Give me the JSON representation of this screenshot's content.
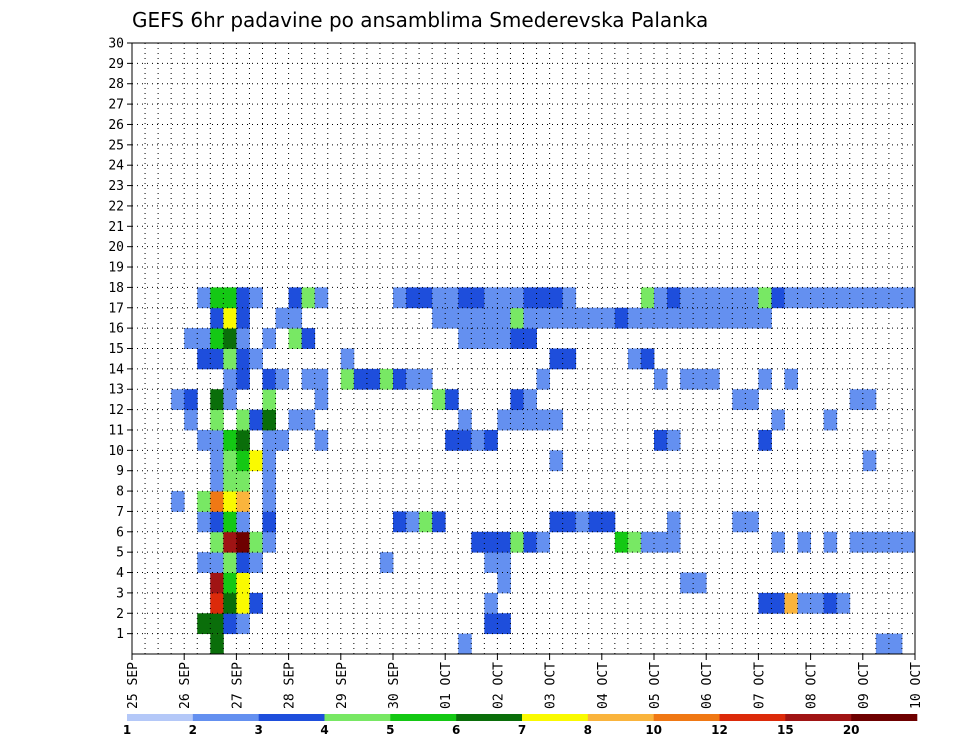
{
  "chart_data": {
    "type": "heatmap",
    "title": "GEFS 6hr padavine po ansamblima Smederevska Palanka",
    "x_tick_labels": [
      "25 SEP",
      "26 SEP",
      "27 SEP",
      "28 SEP",
      "29 SEP",
      "30 SEP",
      "01 OCT",
      "02 OCT",
      "03 OCT",
      "04 OCT",
      "05 OCT",
      "06 OCT",
      "07 OCT",
      "08 OCT",
      "09 OCT",
      "10 OCT"
    ],
    "x_range_steps": [
      0,
      60
    ],
    "steps_per_day": 4,
    "y_tick_labels": [
      "1",
      "2",
      "3",
      "4",
      "5",
      "6",
      "7",
      "8",
      "9",
      "10",
      "11",
      "12",
      "13",
      "14",
      "15",
      "16",
      "17",
      "18",
      "19",
      "20",
      "21",
      "22",
      "23",
      "24",
      "25",
      "26",
      "27",
      "28",
      "29",
      "30"
    ],
    "y_range": [
      0,
      30
    ],
    "grid": true,
    "legend": {
      "placement": "bottom",
      "labels": [
        "1",
        "2",
        "3",
        "4",
        "5",
        "6",
        "7",
        "8",
        "10",
        "12",
        "15",
        "20"
      ],
      "colors": [
        "#b4c8f8",
        "#6490f0",
        "#1e4edc",
        "#78e864",
        "#14c814",
        "#0a6e0a",
        "#fafa00",
        "#fab43c",
        "#f07814",
        "#dc2a0a",
        "#a01414",
        "#6e0000"
      ]
    },
    "cells": [
      [
        6,
        0,
        5
      ],
      [
        6,
        1,
        8
      ],
      [
        6,
        2,
        1
      ],
      [
        6,
        3,
        1
      ],
      [
        7,
        1,
        1
      ],
      [
        25,
        0,
        1
      ],
      [
        57,
        0,
        1
      ],
      [
        58,
        0,
        1
      ],
      [
        5,
        1,
        5
      ],
      [
        6,
        1,
        5
      ],
      [
        7,
        1,
        2
      ],
      [
        8,
        1,
        1
      ],
      [
        27,
        1,
        2
      ],
      [
        28,
        1,
        2
      ],
      [
        6,
        2,
        9
      ],
      [
        7,
        2,
        5
      ],
      [
        8,
        2,
        6
      ],
      [
        9,
        2,
        2
      ],
      [
        27,
        2,
        1
      ],
      [
        48,
        2,
        2
      ],
      [
        49,
        2,
        2
      ],
      [
        50,
        2,
        7
      ],
      [
        51,
        2,
        1
      ],
      [
        52,
        2,
        1
      ],
      [
        53,
        2,
        2
      ],
      [
        54,
        2,
        1
      ],
      [
        6,
        3,
        10
      ],
      [
        7,
        3,
        4
      ],
      [
        8,
        3,
        6
      ],
      [
        28,
        3,
        1
      ],
      [
        42,
        3,
        1
      ],
      [
        43,
        3,
        1
      ],
      [
        5,
        4,
        1
      ],
      [
        6,
        4,
        1
      ],
      [
        7,
        4,
        3
      ],
      [
        8,
        4,
        2
      ],
      [
        9,
        4,
        1
      ],
      [
        19,
        4,
        1
      ],
      [
        27,
        4,
        1
      ],
      [
        28,
        4,
        1
      ],
      [
        6,
        5,
        3
      ],
      [
        7,
        5,
        10
      ],
      [
        8,
        5,
        11
      ],
      [
        9,
        5,
        3
      ],
      [
        10,
        5,
        1
      ],
      [
        26,
        5,
        2
      ],
      [
        27,
        5,
        2
      ],
      [
        28,
        5,
        2
      ],
      [
        29,
        5,
        3
      ],
      [
        30,
        5,
        2
      ],
      [
        31,
        5,
        1
      ],
      [
        37,
        5,
        4
      ],
      [
        38,
        5,
        3
      ],
      [
        39,
        5,
        1
      ],
      [
        40,
        5,
        1
      ],
      [
        41,
        5,
        1
      ],
      [
        49,
        5,
        1
      ],
      [
        51,
        5,
        1
      ],
      [
        53,
        5,
        1
      ],
      [
        55,
        5,
        1
      ],
      [
        56,
        5,
        1
      ],
      [
        57,
        5,
        1
      ],
      [
        58,
        5,
        1
      ],
      [
        59,
        5,
        1
      ],
      [
        5,
        6,
        1
      ],
      [
        6,
        6,
        2
      ],
      [
        7,
        6,
        4
      ],
      [
        8,
        6,
        1
      ],
      [
        10,
        6,
        2
      ],
      [
        20,
        6,
        2
      ],
      [
        21,
        6,
        1
      ],
      [
        22,
        6,
        3
      ],
      [
        23,
        6,
        2
      ],
      [
        32,
        6,
        2
      ],
      [
        33,
        6,
        2
      ],
      [
        34,
        6,
        1
      ],
      [
        35,
        6,
        2
      ],
      [
        36,
        6,
        2
      ],
      [
        41,
        6,
        1
      ],
      [
        46,
        6,
        1
      ],
      [
        47,
        6,
        1
      ],
      [
        3,
        7,
        1
      ],
      [
        5,
        7,
        3
      ],
      [
        6,
        7,
        8
      ],
      [
        7,
        7,
        6
      ],
      [
        8,
        7,
        7
      ],
      [
        10,
        7,
        1
      ],
      [
        6,
        8,
        1
      ],
      [
        7,
        8,
        3
      ],
      [
        8,
        8,
        3
      ],
      [
        10,
        8,
        1
      ],
      [
        6,
        9,
        1
      ],
      [
        7,
        9,
        3
      ],
      [
        8,
        9,
        4
      ],
      [
        9,
        9,
        6
      ],
      [
        10,
        9,
        1
      ],
      [
        32,
        9,
        1
      ],
      [
        56,
        9,
        1
      ],
      [
        5,
        10,
        1
      ],
      [
        6,
        10,
        1
      ],
      [
        7,
        10,
        4
      ],
      [
        8,
        10,
        5
      ],
      [
        10,
        10,
        1
      ],
      [
        11,
        10,
        1
      ],
      [
        14,
        10,
        1
      ],
      [
        24,
        10,
        2
      ],
      [
        25,
        10,
        2
      ],
      [
        26,
        10,
        1
      ],
      [
        27,
        10,
        2
      ],
      [
        40,
        10,
        2
      ],
      [
        41,
        10,
        1
      ],
      [
        48,
        10,
        2
      ],
      [
        4,
        11,
        1
      ],
      [
        6,
        11,
        3
      ],
      [
        8,
        11,
        3
      ],
      [
        9,
        11,
        2
      ],
      [
        10,
        11,
        5
      ],
      [
        12,
        11,
        1
      ],
      [
        13,
        11,
        1
      ],
      [
        25,
        11,
        1
      ],
      [
        28,
        11,
        1
      ],
      [
        29,
        11,
        1
      ],
      [
        30,
        11,
        1
      ],
      [
        31,
        11,
        1
      ],
      [
        32,
        11,
        1
      ],
      [
        49,
        11,
        1
      ],
      [
        53,
        11,
        1
      ],
      [
        3,
        12,
        1
      ],
      [
        4,
        12,
        2
      ],
      [
        6,
        12,
        5
      ],
      [
        7,
        12,
        1
      ],
      [
        10,
        12,
        3
      ],
      [
        14,
        12,
        1
      ],
      [
        23,
        12,
        3
      ],
      [
        24,
        12,
        2
      ],
      [
        29,
        12,
        2
      ],
      [
        30,
        12,
        1
      ],
      [
        46,
        12,
        1
      ],
      [
        47,
        12,
        1
      ],
      [
        55,
        12,
        1
      ],
      [
        56,
        12,
        1
      ],
      [
        7,
        13,
        1
      ],
      [
        8,
        13,
        2
      ],
      [
        10,
        13,
        2
      ],
      [
        11,
        13,
        1
      ],
      [
        13,
        13,
        1
      ],
      [
        14,
        13,
        1
      ],
      [
        16,
        13,
        3
      ],
      [
        17,
        13,
        2
      ],
      [
        18,
        13,
        2
      ],
      [
        19,
        13,
        3
      ],
      [
        20,
        13,
        2
      ],
      [
        21,
        13,
        1
      ],
      [
        22,
        13,
        1
      ],
      [
        31,
        13,
        1
      ],
      [
        40,
        13,
        1
      ],
      [
        42,
        13,
        1
      ],
      [
        43,
        13,
        1
      ],
      [
        44,
        13,
        1
      ],
      [
        48,
        13,
        1
      ],
      [
        50,
        13,
        1
      ],
      [
        5,
        14,
        2
      ],
      [
        6,
        14,
        2
      ],
      [
        7,
        14,
        3
      ],
      [
        8,
        14,
        2
      ],
      [
        9,
        14,
        1
      ],
      [
        16,
        14,
        1
      ],
      [
        32,
        14,
        2
      ],
      [
        33,
        14,
        2
      ],
      [
        38,
        14,
        1
      ],
      [
        39,
        14,
        2
      ],
      [
        4,
        15,
        1
      ],
      [
        5,
        15,
        1
      ],
      [
        6,
        15,
        4
      ],
      [
        7,
        15,
        5
      ],
      [
        8,
        15,
        1
      ],
      [
        10,
        15,
        1
      ],
      [
        12,
        15,
        3
      ],
      [
        13,
        15,
        2
      ],
      [
        25,
        15,
        1
      ],
      [
        26,
        15,
        1
      ],
      [
        27,
        15,
        1
      ],
      [
        28,
        15,
        1
      ],
      [
        29,
        15,
        2
      ],
      [
        30,
        15,
        2
      ],
      [
        6,
        16,
        2
      ],
      [
        7,
        16,
        6
      ],
      [
        8,
        16,
        2
      ],
      [
        11,
        16,
        1
      ],
      [
        12,
        16,
        1
      ],
      [
        23,
        16,
        1
      ],
      [
        24,
        16,
        1
      ],
      [
        25,
        16,
        1
      ],
      [
        26,
        16,
        1
      ],
      [
        27,
        16,
        1
      ],
      [
        28,
        16,
        1
      ],
      [
        29,
        16,
        3
      ],
      [
        30,
        16,
        1
      ],
      [
        31,
        16,
        1
      ],
      [
        32,
        16,
        1
      ],
      [
        33,
        16,
        1
      ],
      [
        34,
        16,
        1
      ],
      [
        35,
        16,
        1
      ],
      [
        36,
        16,
        1
      ],
      [
        37,
        16,
        2
      ],
      [
        38,
        16,
        1
      ],
      [
        39,
        16,
        1
      ],
      [
        40,
        16,
        1
      ],
      [
        41,
        16,
        1
      ],
      [
        42,
        16,
        1
      ],
      [
        43,
        16,
        1
      ],
      [
        44,
        16,
        1
      ],
      [
        45,
        16,
        1
      ],
      [
        46,
        16,
        1
      ],
      [
        47,
        16,
        1
      ],
      [
        48,
        16,
        1
      ],
      [
        5,
        17,
        1
      ],
      [
        6,
        17,
        4
      ],
      [
        7,
        17,
        4
      ],
      [
        8,
        17,
        2
      ],
      [
        9,
        17,
        1
      ],
      [
        12,
        17,
        2
      ],
      [
        13,
        17,
        3
      ],
      [
        14,
        17,
        1
      ],
      [
        20,
        17,
        1
      ],
      [
        21,
        17,
        2
      ],
      [
        22,
        17,
        2
      ],
      [
        23,
        17,
        1
      ],
      [
        24,
        17,
        1
      ],
      [
        25,
        17,
        2
      ],
      [
        26,
        17,
        2
      ],
      [
        27,
        17,
        1
      ],
      [
        28,
        17,
        1
      ],
      [
        29,
        17,
        1
      ],
      [
        30,
        17,
        2
      ],
      [
        31,
        17,
        2
      ],
      [
        32,
        17,
        2
      ],
      [
        33,
        17,
        1
      ],
      [
        39,
        17,
        3
      ],
      [
        40,
        17,
        1
      ],
      [
        41,
        17,
        2
      ],
      [
        42,
        17,
        1
      ],
      [
        43,
        17,
        1
      ],
      [
        44,
        17,
        1
      ],
      [
        45,
        17,
        1
      ],
      [
        46,
        17,
        1
      ],
      [
        47,
        17,
        1
      ],
      [
        48,
        17,
        3
      ],
      [
        49,
        17,
        2
      ],
      [
        50,
        17,
        1
      ],
      [
        51,
        17,
        1
      ],
      [
        52,
        17,
        1
      ],
      [
        53,
        17,
        1
      ],
      [
        54,
        17,
        1
      ],
      [
        55,
        17,
        1
      ],
      [
        56,
        17,
        1
      ],
      [
        57,
        17,
        1
      ],
      [
        58,
        17,
        1
      ],
      [
        59,
        17,
        1
      ]
    ]
  }
}
